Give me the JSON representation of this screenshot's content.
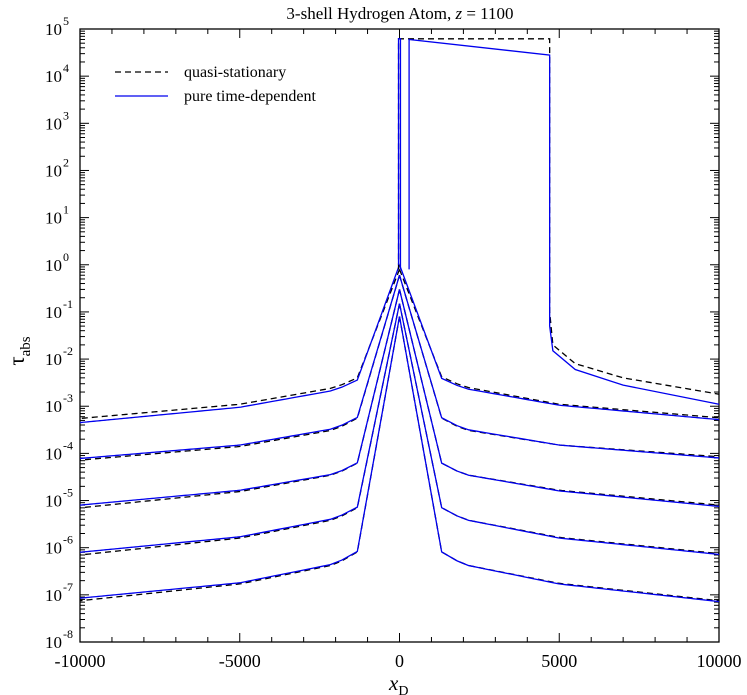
{
  "chart_data": {
    "type": "line",
    "title_prefix": "3-shell Hydrogen Atom, ",
    "title_var": "z",
    "title_suffix": " = 1100",
    "xlabel_main": "x",
    "xlabel_sub": "D",
    "ylabel_main": "τ",
    "ylabel_sub": "abs",
    "xlim": [
      -10000,
      10000
    ],
    "ylim_log10": [
      -8,
      5
    ],
    "y_scale": "log",
    "grid": false,
    "legend_position": "top-left",
    "x_ticks": [
      {
        "value": -10000,
        "label": "-10000"
      },
      {
        "value": -5000,
        "label": "-5000"
      },
      {
        "value": 0,
        "label": "0"
      },
      {
        "value": 5000,
        "label": "5000"
      },
      {
        "value": 10000,
        "label": "10000"
      }
    ],
    "y_ticks": [
      {
        "exp": 5,
        "base": "10",
        "sup": "5"
      },
      {
        "exp": 4,
        "base": "10",
        "sup": "4"
      },
      {
        "exp": 3,
        "base": "10",
        "sup": "3"
      },
      {
        "exp": 2,
        "base": "10",
        "sup": "2"
      },
      {
        "exp": 1,
        "base": "10",
        "sup": "1"
      },
      {
        "exp": 0,
        "base": "10",
        "sup": "0"
      },
      {
        "exp": -1,
        "base": "10",
        "sup": "-1"
      },
      {
        "exp": -2,
        "base": "10",
        "sup": "-2"
      },
      {
        "exp": -3,
        "base": "10",
        "sup": "-3"
      },
      {
        "exp": -4,
        "base": "10",
        "sup": "-4"
      },
      {
        "exp": -5,
        "base": "10",
        "sup": "-5"
      },
      {
        "exp": -6,
        "base": "10",
        "sup": "-6"
      },
      {
        "exp": -7,
        "base": "10",
        "sup": "-7"
      },
      {
        "exp": -8,
        "base": "10",
        "sup": "-8"
      }
    ],
    "series": [
      {
        "name": "quasi-stationary",
        "color": "#000000",
        "dash": true
      },
      {
        "name": "pure time-dependent",
        "color": "#0000ee",
        "dash": false
      }
    ],
    "lines": [
      {
        "series": 0,
        "left": [
          [
            -10000,
            0.00055
          ],
          [
            -5000,
            0.0011
          ],
          [
            -2000,
            0.0025
          ],
          [
            -500,
            0.007
          ],
          [
            -50,
            0.05
          ],
          [
            0,
            0.8
          ]
        ],
        "right": [
          [
            0,
            0.8
          ],
          [
            50,
            0.05
          ],
          [
            500,
            0.0075
          ],
          [
            2000,
            0.0026
          ],
          [
            5000,
            0.0011
          ],
          [
            10000,
            0.00057
          ]
        ]
      },
      {
        "series": 0,
        "left": [
          [
            -10000,
            7.2e-05
          ],
          [
            -5000,
            0.00014
          ],
          [
            -2000,
            0.00032
          ],
          [
            -500,
            0.0011
          ],
          [
            -50,
            0.02
          ],
          [
            0,
            0.6
          ]
        ],
        "right": [
          [
            0,
            0.6
          ],
          [
            50,
            0.02
          ],
          [
            500,
            0.0011
          ],
          [
            2000,
            0.00032
          ],
          [
            5000,
            0.00015
          ],
          [
            10000,
            8.5e-05
          ]
        ]
      },
      {
        "series": 0,
        "left": [
          [
            -10000,
            7e-06
          ],
          [
            -5000,
            1.55e-05
          ],
          [
            -2000,
            3.6e-05
          ],
          [
            -500,
            0.00012
          ],
          [
            -50,
            0.003
          ],
          [
            0,
            0.3
          ]
        ],
        "right": [
          [
            0,
            0.3
          ],
          [
            50,
            0.003
          ],
          [
            500,
            0.00012
          ],
          [
            2000,
            3.6e-05
          ],
          [
            5000,
            1.65e-05
          ],
          [
            10000,
            8e-06
          ]
        ]
      },
      {
        "series": 0,
        "left": [
          [
            -10000,
            7e-07
          ],
          [
            -5000,
            1.6e-06
          ],
          [
            -2000,
            4e-06
          ],
          [
            -500,
            1.4e-05
          ],
          [
            -50,
            0.0004
          ],
          [
            0,
            0.15
          ]
        ],
        "right": [
          [
            0,
            0.15
          ],
          [
            50,
            0.0004
          ],
          [
            500,
            1.4e-05
          ],
          [
            2000,
            4e-06
          ],
          [
            5000,
            1.65e-06
          ],
          [
            10000,
            7.5e-07
          ]
        ]
      },
      {
        "series": 0,
        "left": [
          [
            -10000,
            7.5e-08
          ],
          [
            -5000,
            1.7e-07
          ],
          [
            -2000,
            4.4e-07
          ],
          [
            -500,
            1.7e-06
          ],
          [
            -50,
            6e-05
          ],
          [
            0,
            0.08
          ]
        ],
        "right": [
          [
            0,
            0.08
          ],
          [
            50,
            6e-05
          ],
          [
            500,
            1.7e-06
          ],
          [
            2000,
            4.4e-07
          ],
          [
            5000,
            1.75e-07
          ],
          [
            10000,
            7.5e-08
          ]
        ]
      },
      {
        "series": 1,
        "left": [
          [
            -10000,
            0.00045
          ],
          [
            -5000,
            0.00095
          ],
          [
            -2000,
            0.0022
          ],
          [
            -500,
            0.0065
          ],
          [
            -50,
            0.04
          ],
          [
            0,
            1
          ]
        ],
        "right": [
          [
            0,
            1
          ],
          [
            50,
            0.04
          ],
          [
            500,
            0.007
          ],
          [
            2000,
            0.0024
          ],
          [
            5000,
            0.00105
          ],
          [
            10000,
            0.00052
          ]
        ]
      },
      {
        "series": 1,
        "left": [
          [
            -10000,
            7.8e-05
          ],
          [
            -5000,
            0.00015
          ],
          [
            -2000,
            0.00034
          ],
          [
            -500,
            0.0011
          ],
          [
            -50,
            0.02
          ],
          [
            0,
            0.6
          ]
        ],
        "right": [
          [
            0,
            0.6
          ],
          [
            50,
            0.02
          ],
          [
            500,
            0.0011
          ],
          [
            2000,
            0.00033
          ],
          [
            5000,
            0.00015
          ],
          [
            10000,
            8e-05
          ]
        ]
      },
      {
        "series": 1,
        "left": [
          [
            -10000,
            8e-06
          ],
          [
            -5000,
            1.65e-05
          ],
          [
            -2000,
            3.7e-05
          ],
          [
            -500,
            0.00012
          ],
          [
            -50,
            0.003
          ],
          [
            0,
            0.3
          ]
        ],
        "right": [
          [
            0,
            0.3
          ],
          [
            50,
            0.003
          ],
          [
            500,
            0.00012
          ],
          [
            2000,
            3.6e-05
          ],
          [
            5000,
            1.6e-05
          ],
          [
            10000,
            7.5e-06
          ]
        ]
      },
      {
        "series": 1,
        "left": [
          [
            -10000,
            8e-07
          ],
          [
            -5000,
            1.7e-06
          ],
          [
            -2000,
            4.2e-06
          ],
          [
            -500,
            1.4e-05
          ],
          [
            -50,
            0.0004
          ],
          [
            0,
            0.15
          ]
        ],
        "right": [
          [
            0,
            0.15
          ],
          [
            50,
            0.0004
          ],
          [
            500,
            1.4e-05
          ],
          [
            2000,
            4e-06
          ],
          [
            5000,
            1.6e-06
          ],
          [
            10000,
            7.2e-07
          ]
        ]
      },
      {
        "series": 1,
        "left": [
          [
            -10000,
            8.5e-08
          ],
          [
            -5000,
            1.8e-07
          ],
          [
            -2000,
            4.6e-07
          ],
          [
            -500,
            1.7e-06
          ],
          [
            -50,
            6e-05
          ],
          [
            0,
            0.08
          ]
        ],
        "right": [
          [
            0,
            0.08
          ],
          [
            50,
            6e-05
          ],
          [
            500,
            1.7e-06
          ],
          [
            2000,
            4.4e-07
          ],
          [
            5000,
            1.7e-07
          ],
          [
            10000,
            7.2e-08
          ]
        ]
      },
      {
        "series": 0,
        "plateau": [
          [
            -30,
            0.8
          ],
          [
            -30,
            62000
          ],
          [
            4700,
            62000
          ],
          [
            4700,
            0.1
          ],
          [
            4800,
            0.02
          ],
          [
            5500,
            0.008
          ],
          [
            7000,
            0.004
          ],
          [
            10000,
            0.0018
          ]
        ]
      },
      {
        "series": 1,
        "plateau": [
          [
            -30,
            1
          ],
          [
            -30,
            62000
          ],
          [
            30,
            62000
          ],
          [
            30,
            0.8
          ]
        ]
      },
      {
        "series": 1,
        "plateau": [
          [
            300,
            0.8
          ],
          [
            300,
            60000
          ],
          [
            4700,
            28000
          ],
          [
            4700,
            0.05
          ],
          [
            4800,
            0.015
          ],
          [
            5500,
            0.006
          ],
          [
            7000,
            0.0028
          ],
          [
            10000,
            0.0011
          ]
        ]
      }
    ]
  }
}
